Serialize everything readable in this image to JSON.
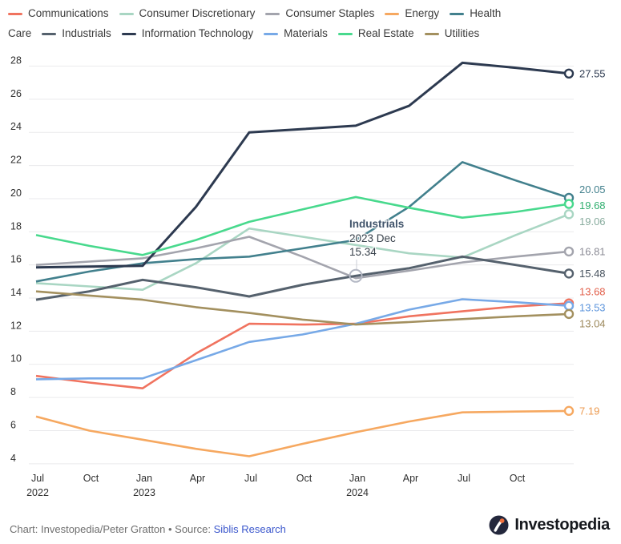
{
  "legend": {
    "items": [
      {
        "label": "Communications",
        "color": "#f0735f"
      },
      {
        "label": "Consumer Discretionary",
        "color": "#a9d6c3"
      },
      {
        "label": "Consumer Staples",
        "color": "#a3a4ad"
      },
      {
        "label": "Energy",
        "color": "#f6a860"
      },
      {
        "label": "Health Care",
        "color": "#42808d"
      },
      {
        "label": "Industrials",
        "color": "#55616d"
      },
      {
        "label": "Information Technology",
        "color": "#2d3a50"
      },
      {
        "label": "Materials",
        "color": "#77a9e7"
      },
      {
        "label": "Real Estate",
        "color": "#48d98d"
      },
      {
        "label": "Utilities",
        "color": "#a3905f"
      }
    ]
  },
  "chart_data": {
    "type": "line",
    "title": "",
    "xlabel": "",
    "ylabel": "",
    "ylim": [
      4,
      28.5
    ],
    "grid": "horizontal",
    "legend_position": "top",
    "y_ticks": [
      4,
      6,
      8,
      10,
      12,
      14,
      16,
      18,
      20,
      22,
      24,
      26,
      28
    ],
    "x_ticks": [
      {
        "month": "Jul",
        "year": "2022"
      },
      {
        "month": "Oct",
        "year": ""
      },
      {
        "month": "Jan",
        "year": "2023"
      },
      {
        "month": "Apr",
        "year": ""
      },
      {
        "month": "Jul",
        "year": ""
      },
      {
        "month": "Oct",
        "year": ""
      },
      {
        "month": "Jan",
        "year": "2024"
      },
      {
        "month": "Apr",
        "year": ""
      },
      {
        "month": "Jul",
        "year": ""
      },
      {
        "month": "Oct",
        "year": ""
      }
    ],
    "categories": [
      "2022 Jun",
      "2022 Sep",
      "2022 Dec",
      "2023 Mar",
      "2023 Jun",
      "2023 Sep",
      "2023 Dec",
      "2024 Mar",
      "2024 Jun",
      "2024 Sep",
      "2024 Dec"
    ],
    "series": [
      {
        "name": "Communications",
        "color": "#f0735f",
        "label_color": "#e2604b",
        "end_label": "13.68",
        "values": [
          9.3,
          8.9,
          8.55,
          10.65,
          12.45,
          12.4,
          12.45,
          12.9,
          13.2,
          13.5,
          13.68
        ]
      },
      {
        "name": "Consumer Discretionary",
        "color": "#a9d6c3",
        "label_color": "#87ab9d",
        "end_label": "19.06",
        "values": [
          14.9,
          14.7,
          14.5,
          16.1,
          18.2,
          17.7,
          17.2,
          16.7,
          16.45,
          17.8,
          19.06
        ]
      },
      {
        "name": "Consumer Staples",
        "color": "#a3a4ad",
        "label_color": "#8b8b95",
        "end_label": "16.81",
        "values": [
          16.0,
          16.2,
          16.4,
          17.0,
          17.7,
          16.5,
          15.2,
          15.65,
          16.15,
          16.5,
          16.81
        ]
      },
      {
        "name": "Energy",
        "color": "#f6a860",
        "label_color": "#ec9a4f",
        "end_label": "7.19",
        "values": [
          6.85,
          6.0,
          5.45,
          4.9,
          4.45,
          5.2,
          5.9,
          6.55,
          7.1,
          7.15,
          7.19
        ]
      },
      {
        "name": "Health Care",
        "color": "#42808d",
        "label_color": "#42808d",
        "end_label": "20.05",
        "values": [
          15.0,
          15.6,
          16.1,
          16.35,
          16.5,
          17.0,
          17.5,
          19.5,
          22.2,
          21.1,
          20.05
        ]
      },
      {
        "name": "Industrials",
        "color": "#55616d",
        "label_color": "#47525e",
        "end_label": "15.48",
        "values": [
          13.9,
          14.4,
          15.1,
          14.65,
          14.1,
          14.8,
          15.34,
          15.8,
          16.5,
          16.0,
          15.48
        ]
      },
      {
        "name": "Information Technology",
        "color": "#2d3a50",
        "label_color": "#2d3a50",
        "end_label": "27.55",
        "values": [
          15.85,
          15.9,
          15.95,
          19.5,
          24.0,
          24.2,
          24.4,
          25.6,
          28.2,
          27.9,
          27.55
        ]
      },
      {
        "name": "Materials",
        "color": "#77a9e7",
        "label_color": "#5d95dc",
        "end_label": "13.53",
        "values": [
          9.1,
          9.15,
          9.15,
          10.25,
          11.35,
          11.8,
          12.45,
          13.3,
          13.93,
          13.75,
          13.53
        ]
      },
      {
        "name": "Real Estate",
        "color": "#48d98d",
        "label_color": "#2fae6e",
        "end_label": "19.68",
        "values": [
          17.8,
          17.15,
          16.6,
          17.5,
          18.6,
          19.35,
          20.1,
          19.45,
          18.85,
          19.2,
          19.68
        ]
      },
      {
        "name": "Utilities",
        "color": "#a3905f",
        "label_color": "#9d895c",
        "end_label": "13.04",
        "values": [
          14.4,
          14.15,
          13.9,
          13.45,
          13.1,
          12.7,
          12.4,
          12.55,
          12.73,
          12.9,
          13.04
        ]
      }
    ]
  },
  "tooltip": {
    "series": "Industrials",
    "title": "Industrials",
    "subtitle": "2023 Dec",
    "value": "15.34",
    "value_num": 15.34,
    "category_index": 6
  },
  "footer": {
    "credit": "Chart: Investopedia/Peter Gratton • Source: ",
    "source": "Siblis Research",
    "brand": "Investopedia"
  }
}
